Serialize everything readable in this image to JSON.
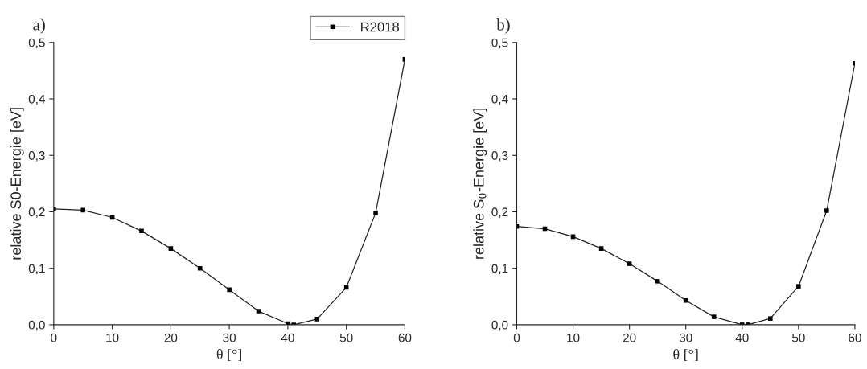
{
  "chart_data": [
    {
      "type": "line",
      "title": "a)",
      "xlabel": "θ [°]",
      "ylabel": "relative S0-Energie [eV]",
      "x": [
        0,
        5,
        10,
        15,
        20,
        25,
        30,
        35,
        40,
        41,
        45,
        50,
        55,
        60
      ],
      "series": [
        {
          "name": "R2018",
          "color": "#222222",
          "values": [
            0.205,
            0.203,
            0.19,
            0.166,
            0.135,
            0.1,
            0.062,
            0.024,
            0.002,
            0.0,
            0.01,
            0.066,
            0.198,
            0.47
          ]
        }
      ],
      "xlim": [
        0,
        60
      ],
      "xticks": [
        0,
        10,
        20,
        30,
        40,
        50,
        60
      ],
      "ylim": [
        0,
        0.5
      ],
      "yticks": [
        {
          "value": 0,
          "label": "0,0"
        },
        {
          "value": 0.1,
          "label": "0,1"
        },
        {
          "value": 0.2,
          "label": "0,2"
        },
        {
          "value": 0.3,
          "label": "0,3"
        },
        {
          "value": 0.4,
          "label": "0,4"
        },
        {
          "value": 0.5,
          "label": "0,5"
        }
      ],
      "marker": "square",
      "legend": "top right",
      "grid": false
    },
    {
      "type": "line",
      "title": "b)",
      "xlabel": "θ [°]",
      "ylabel": "relative S$_{0}$-Energie [eV]",
      "x": [
        0,
        5,
        10,
        15,
        20,
        25,
        30,
        35,
        40,
        41,
        45,
        50,
        55,
        60
      ],
      "series": [
        {
          "color": "#222222",
          "values": [
            0.174,
            0.17,
            0.156,
            0.135,
            0.108,
            0.077,
            0.043,
            0.014,
            0.0,
            0.0,
            0.011,
            0.068,
            0.202,
            0.463
          ]
        }
      ],
      "xlim": [
        0,
        60
      ],
      "xticks": [
        0,
        10,
        20,
        30,
        40,
        50,
        60
      ],
      "ylim": [
        0,
        0.5
      ],
      "yticks": [
        {
          "value": 0,
          "label": "0,0"
        },
        {
          "value": 0.1,
          "label": "0,1"
        },
        {
          "value": 0.2,
          "label": "0,2"
        },
        {
          "value": 0.3,
          "label": "0,3"
        },
        {
          "value": 0.4,
          "label": "0,4"
        },
        {
          "value": 0.5,
          "label": "0,5"
        }
      ],
      "marker": "square",
      "grid": false
    }
  ]
}
